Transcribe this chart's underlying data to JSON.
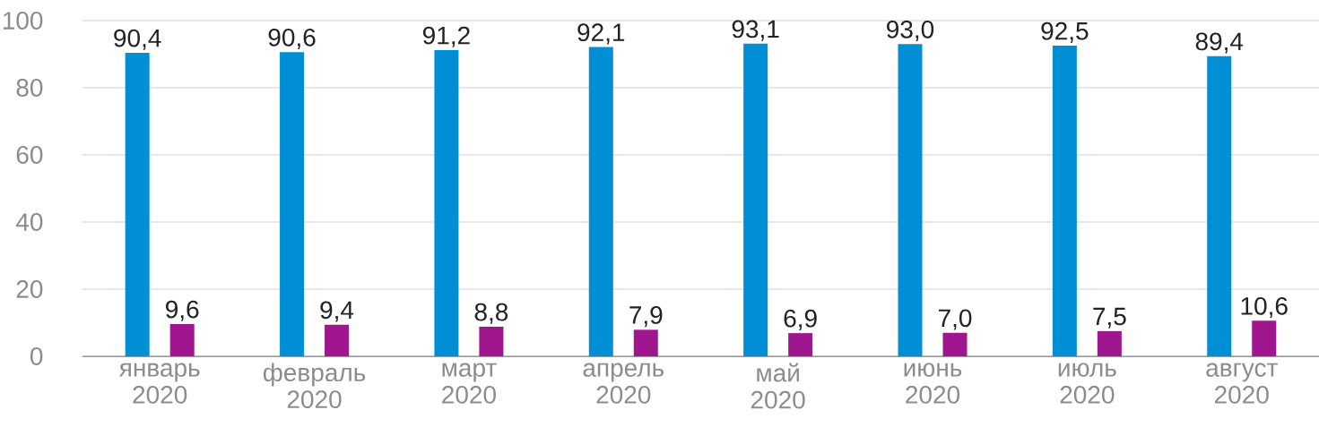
{
  "chart_data": {
    "type": "bar",
    "categories": [
      "январь 2020",
      "февраль 2020",
      "март 2020",
      "апрель 2020",
      "май 2020",
      "июнь 2020",
      "июль 2020",
      "август 2020"
    ],
    "series": [
      {
        "color": "#008fd5",
        "values": [
          90.4,
          90.6,
          91.2,
          92.1,
          93.1,
          93.0,
          92.5,
          89.4
        ],
        "value_labels": [
          "90,4",
          "90,6",
          "91,2",
          "92,1",
          "93,1",
          "93,0",
          "92,5",
          "89,4"
        ]
      },
      {
        "color": "#a0168e",
        "values": [
          9.6,
          9.4,
          8.8,
          7.9,
          6.9,
          7.0,
          7.5,
          10.6
        ],
        "value_labels": [
          "9,6",
          "9,4",
          "8,8",
          "7,9",
          "6,9",
          "7,0",
          "7,5",
          "10,6"
        ]
      }
    ],
    "ylim": [
      0,
      100
    ],
    "yticks": [
      0,
      20,
      40,
      60,
      80,
      100
    ],
    "grid": "y"
  }
}
